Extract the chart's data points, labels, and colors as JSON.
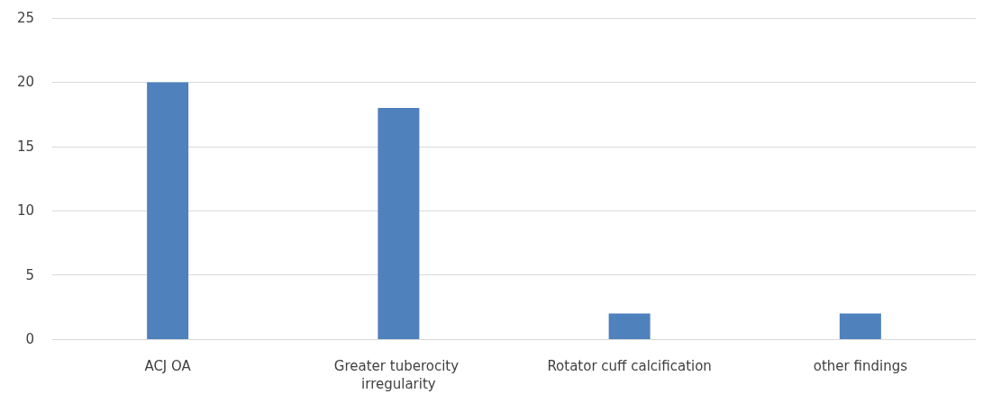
{
  "chart_data": {
    "type": "bar",
    "categories": [
      "ACJ OA",
      "Greater tuberocity irregularity",
      "Rotator cuff calcification",
      "other findings"
    ],
    "values": [
      20,
      18,
      2,
      2
    ],
    "color": "#4f81bd",
    "ylim": [
      0,
      25
    ],
    "yticks": [
      0,
      5,
      10,
      15,
      20,
      25
    ],
    "grid": "y"
  }
}
